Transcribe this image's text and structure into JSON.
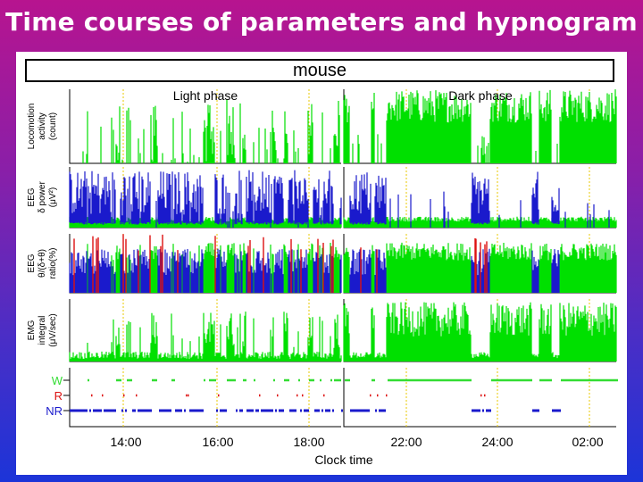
{
  "title": "Time courses of parameters and hypnogram",
  "species": "mouse",
  "chart_data": {
    "type": "line",
    "phases": [
      "Light phase",
      "Dark phase"
    ],
    "panels": [
      {
        "name": "locomotion",
        "label_lines": [
          "Locomotion",
          "activity",
          "(count)"
        ],
        "color": "#00e000"
      },
      {
        "name": "eeg-delta",
        "label_lines": [
          "EEG",
          "δ power",
          "(μV²)"
        ],
        "color": "#1a1acc"
      },
      {
        "name": "eeg-ratio",
        "label_lines": [
          "EEG",
          "θ/(δ+θ)",
          "ratio(%)"
        ],
        "color": "#1a1acc"
      },
      {
        "name": "emg",
        "label_lines": [
          "EMG",
          "integral",
          "(μV/sec)"
        ],
        "color": "#00e000"
      }
    ],
    "hypnogram": {
      "stages": [
        "W",
        "R",
        "NR"
      ],
      "colors": {
        "W": "#33dd33",
        "R": "#dd1111",
        "NR": "#1a1acc"
      }
    },
    "x_ticks": [
      "14:00",
      "16:00",
      "18:00",
      "22:00",
      "24:00",
      "02:00"
    ],
    "xlabel": "Clock time"
  }
}
